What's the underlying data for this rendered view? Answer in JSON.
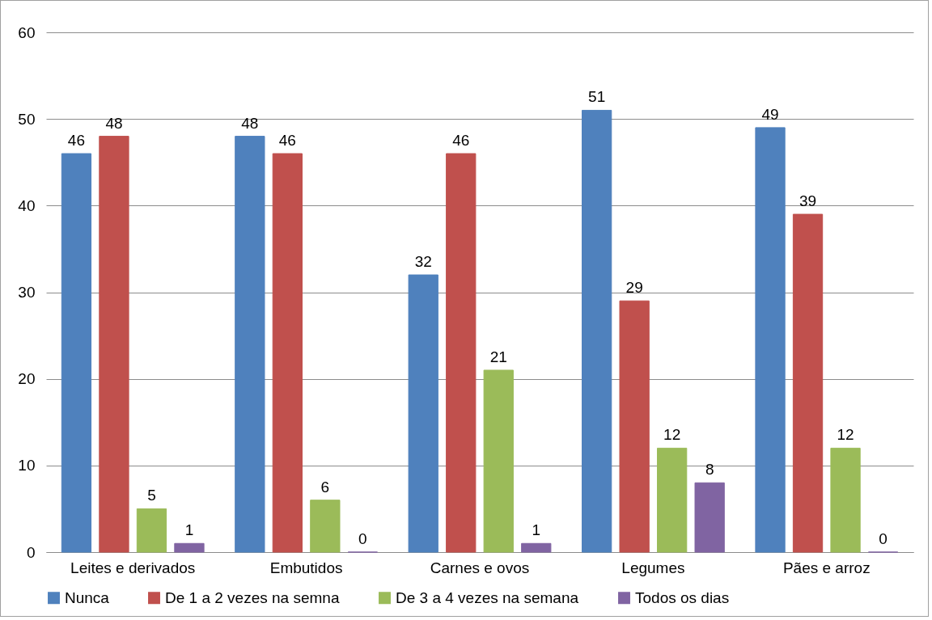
{
  "chart_data": {
    "type": "bar",
    "categories": [
      "Leites e derivados",
      "Embutidos",
      "Carnes e ovos",
      "Legumes",
      "Pães e arroz"
    ],
    "series": [
      {
        "name": "Nunca",
        "color": "#4f81bd",
        "values": [
          46,
          48,
          32,
          51,
          49
        ]
      },
      {
        "name": "De 1 a 2 vezes na semna",
        "color": "#c0504d",
        "values": [
          48,
          46,
          46,
          29,
          39
        ]
      },
      {
        "name": "De 3 a 4 vezes na semana",
        "color": "#9bbb59",
        "values": [
          5,
          6,
          21,
          12,
          12
        ]
      },
      {
        "name": "Todos os dias",
        "color": "#8064a2",
        "values": [
          1,
          0,
          1,
          8,
          0
        ]
      }
    ],
    "ylim": [
      0,
      60
    ],
    "yticks": [
      0,
      10,
      20,
      30,
      40,
      50,
      60
    ],
    "grid": "y",
    "legend": "bottom",
    "data_labels": true
  }
}
